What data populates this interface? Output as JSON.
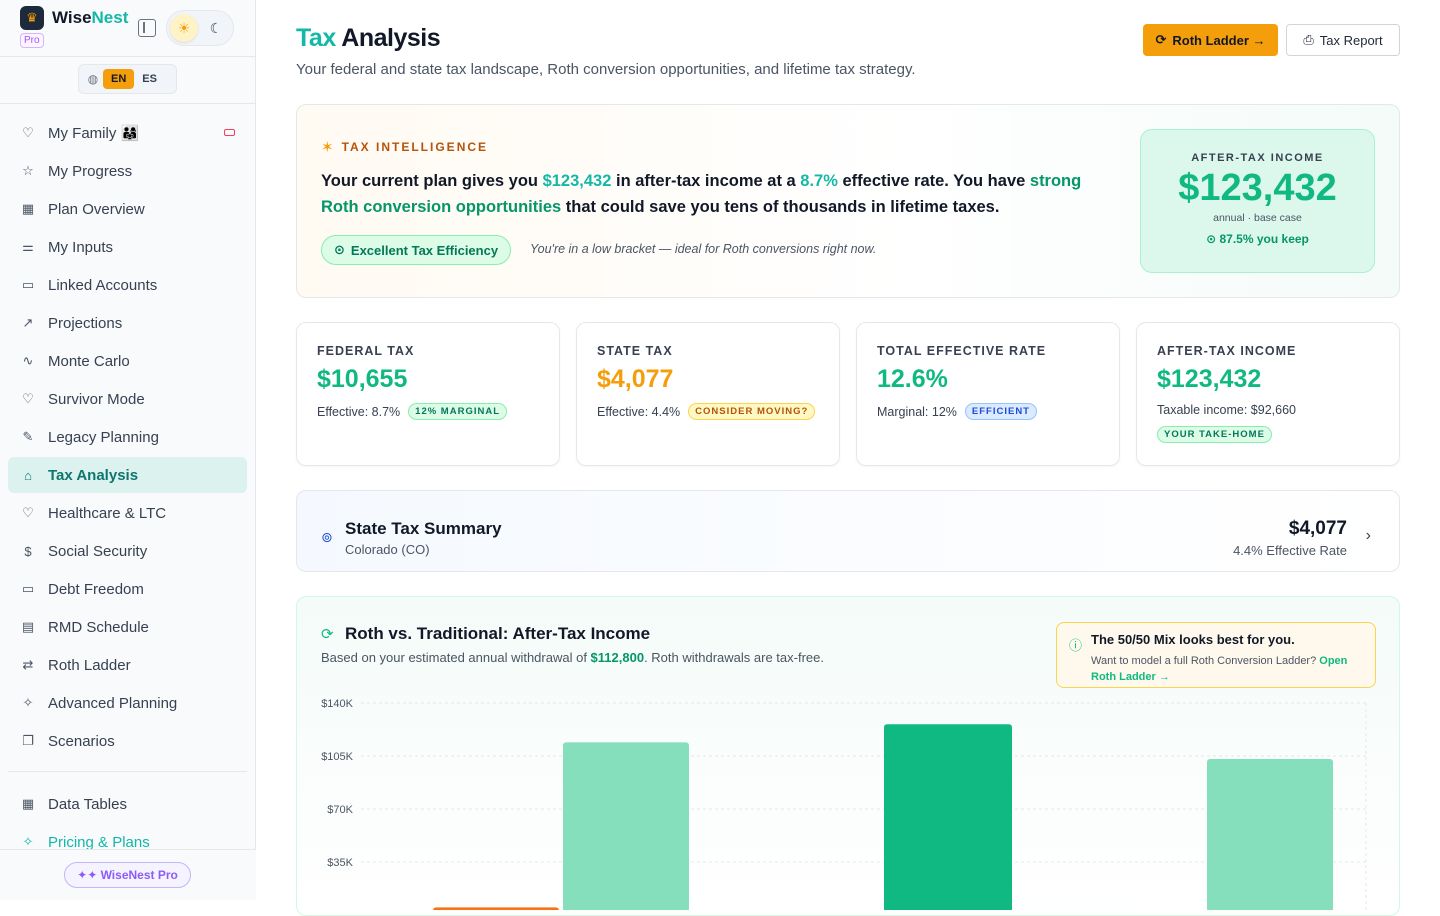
{
  "brand": {
    "name_a": "Wise",
    "name_b": "Nest",
    "badge": "Pro"
  },
  "lang": {
    "en": "EN",
    "es": "ES"
  },
  "nav": [
    {
      "label": "My Family 👨‍👩‍👧",
      "icon": "heart-icon"
    },
    {
      "label": "My Progress",
      "icon": "star-icon"
    },
    {
      "label": "Plan Overview",
      "icon": "grid-icon"
    },
    {
      "label": "My Inputs",
      "icon": "sliders-icon"
    },
    {
      "label": "Linked Accounts",
      "icon": "bank-card-icon"
    },
    {
      "label": "Projections",
      "icon": "trending-up-icon"
    },
    {
      "label": "Monte Carlo",
      "icon": "pulse-icon"
    },
    {
      "label": "Survivor Mode",
      "icon": "heart-icon"
    },
    {
      "label": "Legacy Planning",
      "icon": "pen-icon"
    },
    {
      "label": "Tax Analysis",
      "icon": "building-icon"
    },
    {
      "label": "Healthcare & LTC",
      "icon": "heart-pulse-icon"
    },
    {
      "label": "Social Security",
      "icon": "dollar-icon"
    },
    {
      "label": "Debt Freedom",
      "icon": "credit-card-icon"
    },
    {
      "label": "RMD Schedule",
      "icon": "calendar-icon"
    },
    {
      "label": "Roth Ladder",
      "icon": "arrows-icon"
    },
    {
      "label": "Advanced Planning",
      "icon": "sparkle-icon"
    },
    {
      "label": "Scenarios",
      "icon": "copy-icon"
    }
  ],
  "nav2": [
    {
      "label": "Data Tables",
      "icon": "table-icon"
    },
    {
      "label": "Pricing & Plans",
      "icon": "sparkle-icon"
    }
  ],
  "pro_button": "✦✦ WiseNest Pro",
  "header": {
    "title_a": "Tax",
    "title_b": "Analysis",
    "subtitle": "Your federal and state tax landscape, Roth conversion opportunities, and lifetime tax strategy.",
    "roth_btn": "Roth Ladder →",
    "report_btn": "Tax Report"
  },
  "intel": {
    "label": "TAX INTELLIGENCE",
    "t1": "Your current plan gives you ",
    "v1": "$123,432",
    "t2": " in after-tax income at a ",
    "v2": "8.7%",
    "t3": " effective rate. You have ",
    "v3": "strong Roth conversion opportunities",
    "t4": " that could save you tens of thousands in lifetime taxes.",
    "badge": "Excellent Tax Efficiency",
    "note": "You're in a low bracket — ideal for Roth conversions right now.",
    "ati_label": "AFTER-TAX INCOME",
    "ati_value": "$123,432",
    "ati_sub": "annual · base case",
    "ati_keep": "87.5% you keep"
  },
  "stats": [
    {
      "label": "FEDERAL TAX",
      "value": "$10,655",
      "color": "#10b981",
      "row": "Effective: 8.7%",
      "pill": "12% MARGINAL",
      "pill_class": "green"
    },
    {
      "label": "STATE TAX",
      "value": "$4,077",
      "color": "#f59e0b",
      "row": "Effective: 4.4%",
      "pill": "CONSIDER MOVING?",
      "pill_class": "amber"
    },
    {
      "label": "TOTAL EFFECTIVE RATE",
      "value": "12.6%",
      "color": "#10b981",
      "row": "Marginal: 12%",
      "pill": "EFFICIENT",
      "pill_class": "blue"
    },
    {
      "label": "AFTER-TAX INCOME",
      "value": "$123,432",
      "color": "#10b981",
      "row": "Taxable income: $92,660",
      "pill": "YOUR TAKE-HOME",
      "pill_class": "green"
    }
  ],
  "summary": {
    "title": "State Tax Summary",
    "sub": "Colorado (CO)",
    "amount": "$4,077",
    "rate": "4.4% Effective Rate"
  },
  "roth": {
    "title": "Roth vs. Traditional: After-Tax Income",
    "sub_a": "Based on your estimated annual withdrawal of ",
    "sub_v": "$112,800",
    "sub_b": ". Roth withdrawals are tax-free.",
    "tip_h": "The 50/50 Mix looks best for you.",
    "tip_b": "Want to model a full Roth Conversion Ladder? ",
    "tip_link": "Open Roth Ladder →"
  },
  "chart_data": {
    "type": "bar",
    "yticks": [
      "$140K",
      "$105K",
      "$70K",
      "$35K"
    ],
    "ylim": [
      0,
      140000
    ],
    "bars": [
      {
        "value": 5000,
        "color": "#f97316"
      },
      {
        "value": 114000,
        "color": "#86dfbc"
      },
      {
        "value": 126000,
        "color": "#10b981"
      },
      {
        "value": 103000,
        "color": "#86dfbc"
      }
    ]
  }
}
